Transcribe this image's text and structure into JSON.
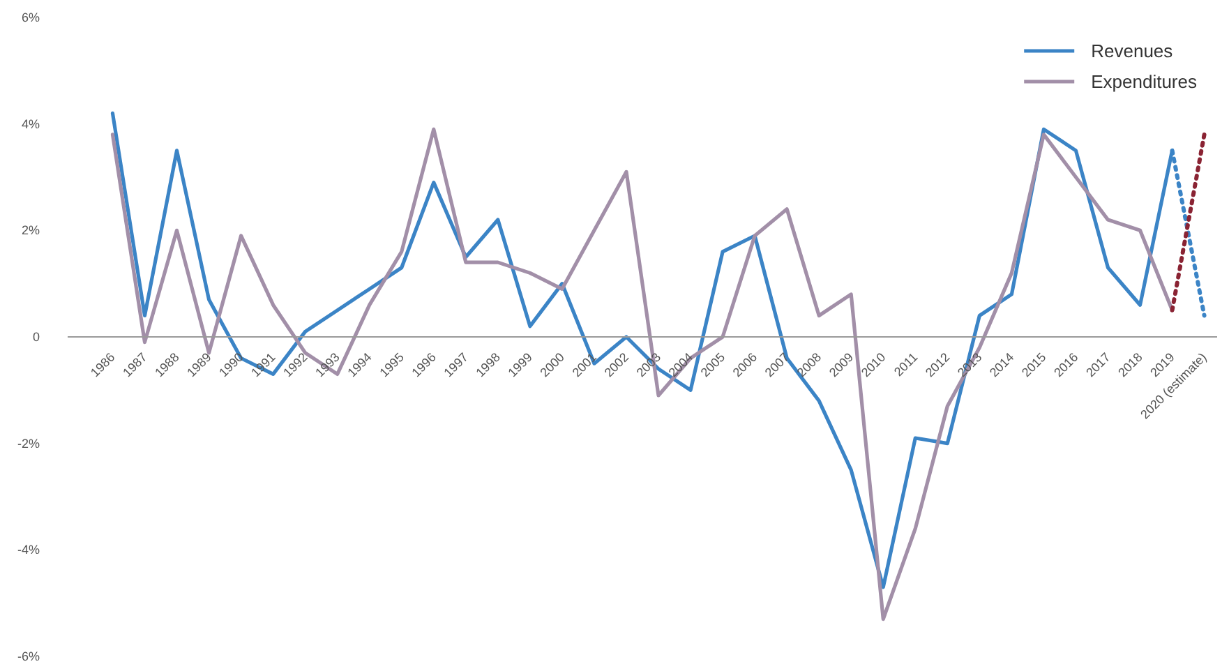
{
  "chart_data": {
    "type": "line",
    "categories": [
      "1986",
      "1987",
      "1988",
      "1989",
      "1990",
      "1991",
      "1992",
      "1993",
      "1994",
      "1995",
      "1996",
      "1997",
      "1998",
      "1999",
      "2000",
      "2001",
      "2002",
      "2003",
      "2004",
      "2005",
      "2006",
      "2007",
      "2008",
      "2009",
      "2010",
      "2011",
      "2012",
      "2013",
      "2014",
      "2015",
      "2016",
      "2017",
      "2018",
      "2019",
      "2020 (estimate)"
    ],
    "ylim": [
      -6,
      6
    ],
    "yticks": [
      {
        "value": -6,
        "label": "-6%"
      },
      {
        "value": -4,
        "label": "-4%"
      },
      {
        "value": -2,
        "label": "-2%"
      },
      0,
      {
        "value": 2,
        "label": "2%"
      },
      {
        "value": 4,
        "label": "4%"
      },
      {
        "value": 6,
        "label": "6%"
      }
    ],
    "grid": false,
    "legend": "top right",
    "line_style": "solid",
    "series": [
      {
        "name": "Revenues",
        "color": "#3b84c6",
        "values": [
          4.2,
          0.4,
          3.5,
          0.7,
          -0.4,
          -0.7,
          0.1,
          0.5,
          0.9,
          1.3,
          2.9,
          1.5,
          2.2,
          0.2,
          1.0,
          -0.5,
          0.0,
          -0.6,
          -1.0,
          1.6,
          1.9,
          -0.4,
          -1.2,
          -2.5,
          -4.7,
          -1.9,
          -2.0,
          0.4,
          0.8,
          3.9,
          3.5,
          1.3,
          0.6,
          3.5,
          null
        ]
      },
      {
        "name": "Expenditures",
        "color": "#a28fa8",
        "values": [
          3.8,
          -0.1,
          2.0,
          -0.3,
          1.9,
          0.6,
          -0.3,
          -0.7,
          0.6,
          1.6,
          3.9,
          1.4,
          1.4,
          1.2,
          0.9,
          2.0,
          3.1,
          -1.1,
          -0.4,
          0.0,
          1.9,
          2.4,
          0.4,
          0.8,
          -5.3,
          -3.6,
          -1.3,
          -0.2,
          1.2,
          3.8,
          3.0,
          2.2,
          2.0,
          0.5,
          null
        ]
      },
      {
        "color": "#3b84c6",
        "line_style": "dotted",
        "values": [
          null,
          null,
          null,
          null,
          null,
          null,
          null,
          null,
          null,
          null,
          null,
          null,
          null,
          null,
          null,
          null,
          null,
          null,
          null,
          null,
          null,
          null,
          null,
          null,
          null,
          null,
          null,
          null,
          null,
          null,
          null,
          null,
          null,
          3.5,
          0.4
        ]
      },
      {
        "color": "#8a2333",
        "line_style": "dotted",
        "values": [
          null,
          null,
          null,
          null,
          null,
          null,
          null,
          null,
          null,
          null,
          null,
          null,
          null,
          null,
          null,
          null,
          null,
          null,
          null,
          null,
          null,
          null,
          null,
          null,
          null,
          null,
          null,
          null,
          null,
          null,
          null,
          null,
          null,
          0.5,
          3.8
        ]
      }
    ]
  }
}
